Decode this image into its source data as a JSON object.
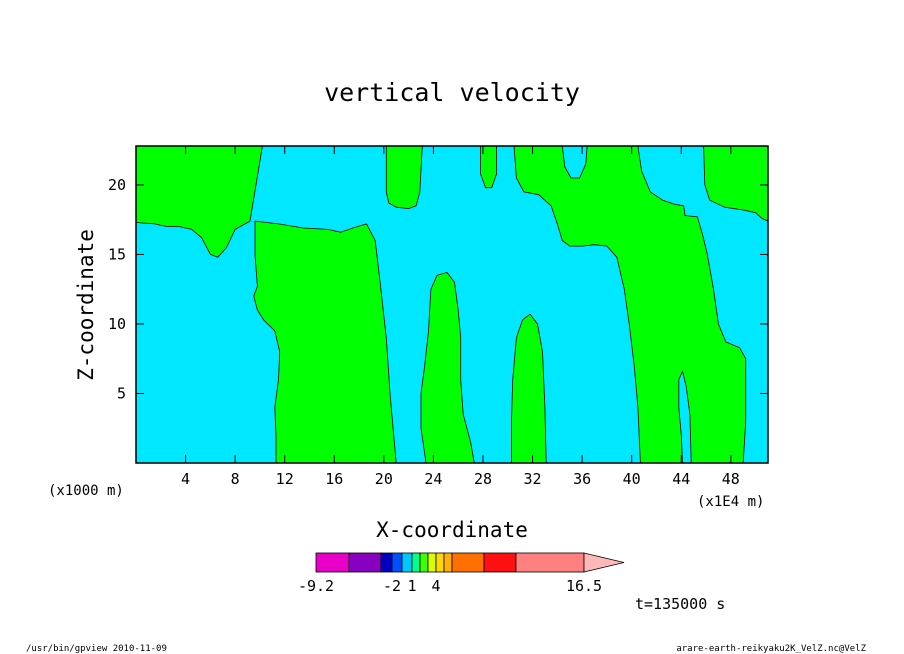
{
  "chart_data": {
    "type": "heatmap",
    "title": "vertical velocity",
    "xlabel": "X-coordinate",
    "ylabel": "Z-coordinate",
    "x_units": "(x1000 m)",
    "x_units_secondary": "(x1E4 m)",
    "xlim": [
      0,
      51
    ],
    "ylim": [
      0,
      22.8
    ],
    "x_ticks": [
      4,
      8,
      12,
      16,
      20,
      24,
      28,
      32,
      36,
      40,
      44,
      48
    ],
    "y_ticks": [
      5,
      10,
      15,
      20
    ],
    "x_tick_labels": [
      "4",
      "8",
      "12",
      "16",
      "20",
      "24",
      "28",
      "32",
      "36",
      "40",
      "44",
      "48"
    ],
    "y_tick_labels": [
      "5",
      "10",
      "15",
      "20"
    ],
    "regions": [
      {
        "level": "cyan",
        "color": "#00e8ff",
        "description": "background"
      },
      {
        "level": "green",
        "color": "#00ff00",
        "polygon": [
          [
            0,
            17.3
          ],
          [
            1.5,
            17.2
          ],
          [
            2.5,
            17.0
          ],
          [
            3.5,
            17.0
          ],
          [
            4.5,
            16.8
          ],
          [
            5.3,
            16.2
          ],
          [
            6.0,
            15.0
          ],
          [
            6.6,
            14.8
          ],
          [
            7.3,
            15.5
          ],
          [
            8.0,
            16.8
          ],
          [
            9.2,
            17.4
          ],
          [
            10.2,
            22.8
          ],
          [
            0,
            22.8
          ]
        ]
      },
      {
        "level": "green",
        "color": "#00ff00",
        "polygon": [
          [
            9.6,
            17.4
          ],
          [
            11.5,
            17.2
          ],
          [
            13.5,
            16.9
          ],
          [
            15.5,
            16.8
          ],
          [
            16.5,
            16.6
          ],
          [
            17.5,
            16.9
          ],
          [
            18.6,
            17.2
          ],
          [
            19.3,
            16.0
          ],
          [
            19.7,
            13.0
          ],
          [
            20.2,
            9.0
          ],
          [
            20.5,
            5.0
          ],
          [
            21.0,
            0
          ],
          [
            11.3,
            0
          ],
          [
            11.3,
            2.0
          ],
          [
            11.2,
            4.0
          ],
          [
            11.5,
            6.0
          ],
          [
            11.6,
            8.0
          ],
          [
            11.2,
            9.5
          ],
          [
            10.3,
            10.3
          ],
          [
            9.8,
            11.0
          ],
          [
            9.5,
            12.0
          ],
          [
            9.8,
            12.7
          ],
          [
            9.6,
            15.0
          ]
        ]
      },
      {
        "level": "green",
        "color": "#00ff00",
        "polygon": [
          [
            20.2,
            22.8
          ],
          [
            20.2,
            19.5
          ],
          [
            20.4,
            18.7
          ],
          [
            21.0,
            18.4
          ],
          [
            22.0,
            18.3
          ],
          [
            22.6,
            18.5
          ],
          [
            22.9,
            19.5
          ],
          [
            23.1,
            22.8
          ]
        ]
      },
      {
        "level": "green",
        "color": "#00ff00",
        "polygon": [
          [
            27.8,
            22.8
          ],
          [
            27.8,
            20.8
          ],
          [
            28.2,
            19.8
          ],
          [
            28.7,
            19.8
          ],
          [
            29.1,
            20.8
          ],
          [
            29.1,
            22.8
          ]
        ]
      },
      {
        "level": "green",
        "color": "#00ff00",
        "polygon": [
          [
            30.5,
            22.8
          ],
          [
            30.7,
            20.5
          ],
          [
            31.3,
            19.5
          ],
          [
            32.5,
            19.3
          ],
          [
            33.5,
            18.5
          ],
          [
            34.0,
            17.2
          ],
          [
            34.4,
            16.0
          ],
          [
            35.0,
            15.6
          ],
          [
            36.0,
            15.6
          ],
          [
            37.0,
            15.7
          ],
          [
            38.0,
            15.6
          ],
          [
            38.8,
            14.8
          ],
          [
            39.4,
            12.5
          ],
          [
            39.8,
            10.0
          ],
          [
            40.2,
            7.0
          ],
          [
            40.5,
            4.0
          ],
          [
            40.7,
            0
          ],
          [
            44.1,
            0
          ],
          [
            44.0,
            2.0
          ],
          [
            43.8,
            4.0
          ],
          [
            43.8,
            6.0
          ],
          [
            44.1,
            6.6
          ],
          [
            44.4,
            5.5
          ],
          [
            44.7,
            3.5
          ],
          [
            44.8,
            0
          ],
          [
            49.0,
            0
          ],
          [
            49.2,
            3.0
          ],
          [
            49.2,
            7.5
          ],
          [
            48.7,
            8.3
          ],
          [
            47.6,
            8.7
          ],
          [
            47.0,
            10.0
          ],
          [
            46.6,
            12.5
          ],
          [
            46.1,
            15.0
          ],
          [
            45.7,
            16.5
          ],
          [
            45.3,
            17.7
          ],
          [
            44.3,
            17.8
          ],
          [
            44.2,
            18.5
          ],
          [
            43.5,
            18.6
          ],
          [
            42.5,
            18.9
          ],
          [
            41.5,
            19.5
          ],
          [
            40.8,
            21.0
          ],
          [
            40.5,
            22.8
          ],
          [
            36.4,
            22.8
          ],
          [
            36.3,
            21.5
          ],
          [
            35.8,
            20.5
          ],
          [
            35.1,
            20.5
          ],
          [
            34.6,
            21.3
          ],
          [
            34.4,
            22.8
          ]
        ]
      },
      {
        "level": "green",
        "color": "#00ff00",
        "polygon": [
          [
            45.8,
            22.8
          ],
          [
            45.9,
            20.0
          ],
          [
            46.3,
            18.9
          ],
          [
            47.5,
            18.4
          ],
          [
            49.0,
            18.2
          ],
          [
            50.0,
            18.0
          ],
          [
            50.5,
            17.6
          ],
          [
            51,
            17.4
          ],
          [
            51,
            22.8
          ]
        ]
      },
      {
        "level": "green",
        "color": "#00ff00",
        "polygon": [
          [
            23.4,
            0
          ],
          [
            23.0,
            2.5
          ],
          [
            23.0,
            5.0
          ],
          [
            23.3,
            7.0
          ],
          [
            23.6,
            9.5
          ],
          [
            23.8,
            12.5
          ],
          [
            24.3,
            13.5
          ],
          [
            25.1,
            13.7
          ],
          [
            25.7,
            13.0
          ],
          [
            26.0,
            11.0
          ],
          [
            26.2,
            9.0
          ],
          [
            26.2,
            6.0
          ],
          [
            26.4,
            3.5
          ],
          [
            27.0,
            1.5
          ],
          [
            27.3,
            0
          ]
        ]
      },
      {
        "level": "green",
        "color": "#00ff00",
        "polygon": [
          [
            30.3,
            0
          ],
          [
            30.3,
            3.0
          ],
          [
            30.4,
            6.0
          ],
          [
            30.7,
            9.0
          ],
          [
            31.2,
            10.3
          ],
          [
            31.8,
            10.7
          ],
          [
            32.4,
            10.0
          ],
          [
            32.8,
            8.0
          ],
          [
            33.0,
            4.0
          ],
          [
            33.1,
            0
          ]
        ]
      }
    ]
  },
  "colorbar": {
    "colors": [
      "#e800c8",
      "#8800c0",
      "#0000c0",
      "#0050ff",
      "#00c8ff",
      "#00ff90",
      "#40ff00",
      "#d8ff00",
      "#ffd800",
      "#ffb000",
      "#ff7000",
      "#ff1010",
      "#ff8080",
      "#ffb8b8"
    ],
    "labels": [
      "-9.2",
      "-2",
      "1",
      "4",
      "16.5"
    ]
  },
  "annotations": {
    "time": "t=135000 s",
    "footer_left": "/usr/bin/gpview   2010-11-09",
    "footer_right": "arare-earth-reikyaku2K_VelZ.nc@VelZ"
  }
}
